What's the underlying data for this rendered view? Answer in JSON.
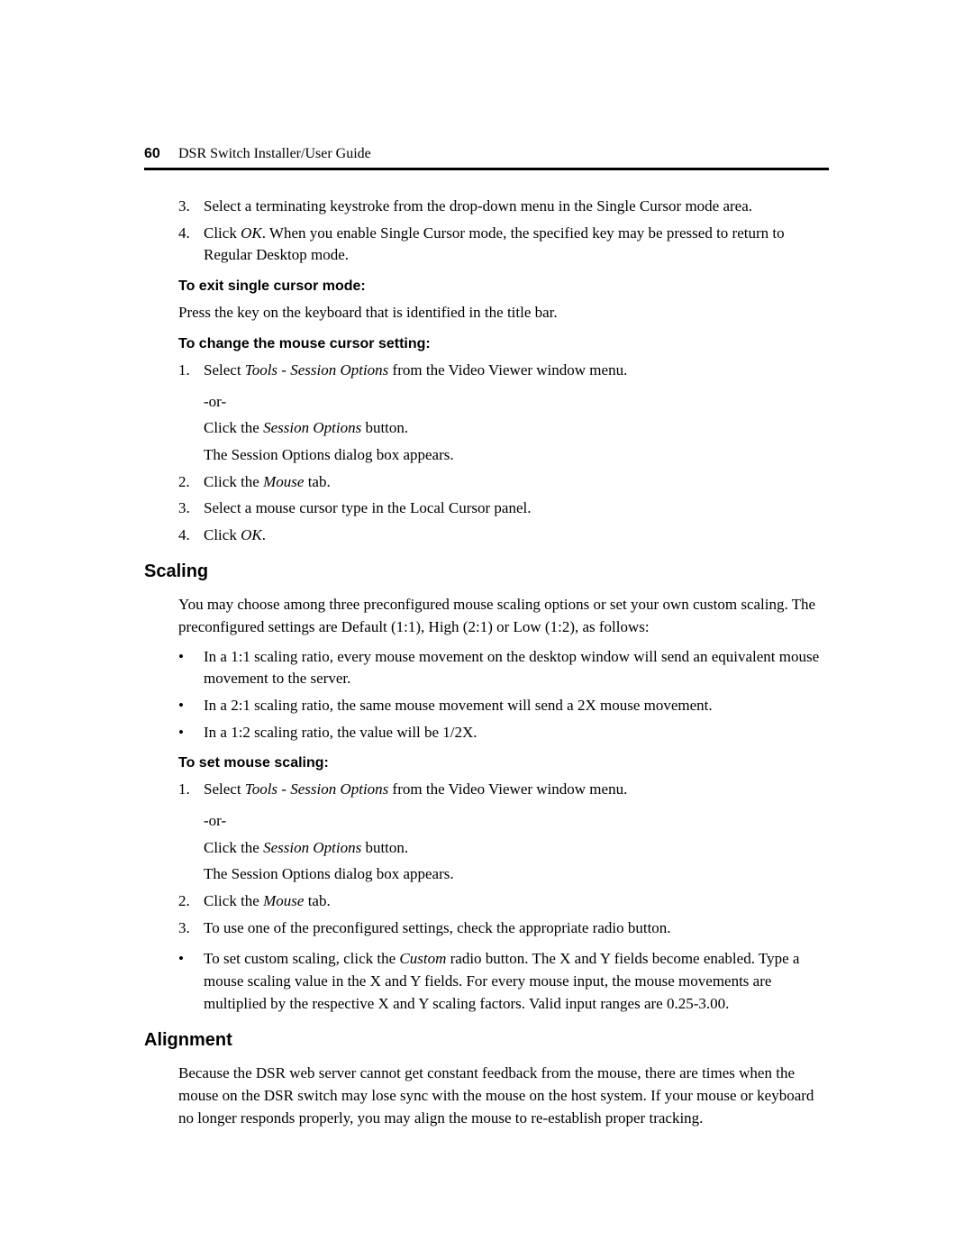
{
  "header": {
    "page_number": "60",
    "title": "DSR Switch Installer/User Guide"
  },
  "start_list": {
    "items": [
      {
        "n": "3.",
        "text": "Select a terminating keystroke from the drop-down menu in the Single Cursor mode area."
      },
      {
        "n": "4.",
        "prefix": "Click ",
        "it": "OK",
        "suffix": ". When you enable Single Cursor mode, the specified key may be pressed to return to Regular Desktop mode."
      }
    ]
  },
  "exit_heading": "To exit single cursor mode:",
  "exit_para": "Press the key on the keyboard that is identified in the title bar.",
  "change_heading": "To change the mouse cursor setting:",
  "change_list": {
    "step1_n": "1.",
    "step1_a_pre": "Select ",
    "step1_a_it1": "Tools",
    "step1_a_mid": " - ",
    "step1_a_it2": "Session Options",
    "step1_a_post": " from the Video Viewer window menu.",
    "step1_or": "-or-",
    "step1_b_pre": "Click the ",
    "step1_b_it": "Session Options",
    "step1_b_post": " button.",
    "step1_c": "The Session Options dialog box appears.",
    "step2_n": "2.",
    "step2_pre": "Click the ",
    "step2_it": "Mouse",
    "step2_post": " tab.",
    "step3_n": "3.",
    "step3_txt": "Select a mouse cursor type in the Local Cursor panel.",
    "step4_n": "4.",
    "step4_pre": "Click ",
    "step4_it": "OK",
    "step4_post": "."
  },
  "scaling_heading": "Scaling",
  "scaling_intro": "You may choose among three preconfigured mouse scaling options or set your own custom scaling. The preconfigured settings are Default (1:1), High (2:1) or Low (1:2), as follows:",
  "scaling_bullets": [
    "In a 1:1 scaling ratio, every mouse movement on the desktop window will send an equivalent mouse movement to the server.",
    "In a 2:1 scaling ratio, the same mouse movement will send a 2X mouse movement.",
    "In a 1:2 scaling ratio, the value will be 1/2X."
  ],
  "set_scaling_heading": "To set mouse scaling:",
  "set_list": {
    "step1_n": "1.",
    "step1_a_pre": "Select ",
    "step1_a_it1": "Tools",
    "step1_a_mid": " - ",
    "step1_a_it2": "Session Options",
    "step1_a_post": " from the Video Viewer window menu.",
    "step1_or": "-or-",
    "step1_b_pre": "Click the ",
    "step1_b_it": "Session Options",
    "step1_b_post": " button.",
    "step1_c": "The Session Options dialog box appears.",
    "step2_n": "2.",
    "step2_pre": "Click the ",
    "step2_it": "Mouse",
    "step2_post": " tab.",
    "step3_n": "3.",
    "step3_txt": "To use one of the preconfigured settings, check the appropriate radio button.",
    "bullet_pre": "To set custom scaling, click the ",
    "bullet_it": "Custom",
    "bullet_post": " radio button. The X and Y fields become enabled. Type a mouse scaling value in the X and Y fields. For every mouse input, the mouse movements are multiplied by the respective X and Y scaling factors. Valid input ranges are 0.25-3.00."
  },
  "alignment_heading": "Alignment",
  "alignment_para": "Because the DSR web server cannot get constant feedback from the mouse, there are times when the mouse on the DSR switch may lose sync with the mouse on the host system. If your mouse or keyboard no longer responds properly, you may align the mouse to re-establish proper tracking."
}
